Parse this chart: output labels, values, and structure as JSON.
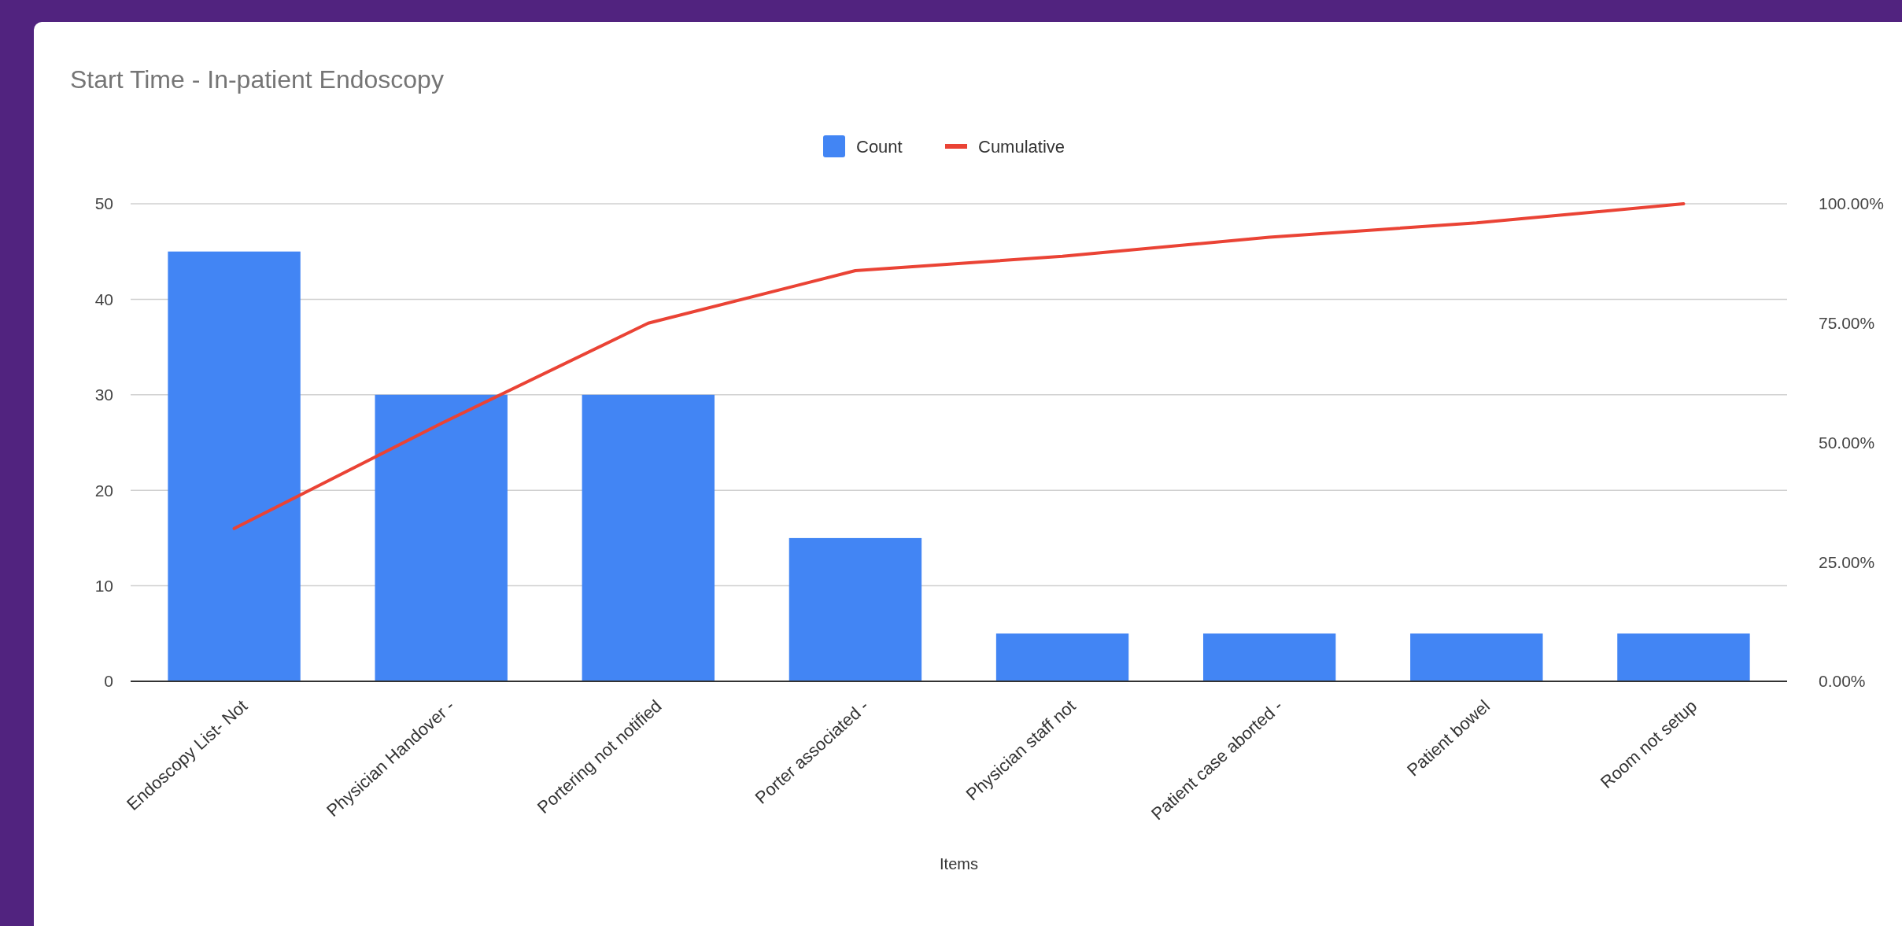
{
  "chart_data": {
    "type": "bar",
    "title": "Start Time - In-patient Endoscopy",
    "xlabel": "Items",
    "categories": [
      "Endoscopy List- Not",
      "Physician Handover -",
      "Portering not notified",
      "Porter associated -",
      "Physician staff not",
      "Patient case aborted -",
      "Patient bowel",
      "Room not setup"
    ],
    "series": [
      {
        "name": "Count",
        "color": "#4285f4",
        "values": [
          45,
          30,
          30,
          15,
          5,
          5,
          5,
          5
        ]
      },
      {
        "name": "Cumulative",
        "type": "line",
        "axis": "y2",
        "color": "#ea4335",
        "values": [
          32,
          54,
          75,
          86,
          89,
          93,
          96,
          100
        ]
      }
    ],
    "ylim": [
      0,
      50
    ],
    "yticks": [
      0,
      10,
      20,
      30,
      40,
      50
    ],
    "y2lim": [
      0,
      100
    ],
    "y2ticks": [
      {
        "value": 0,
        "label": "0.00%"
      },
      {
        "value": 25,
        "label": "25.00%"
      },
      {
        "value": 50,
        "label": "50.00%"
      },
      {
        "value": 75,
        "label": "75.00%"
      },
      {
        "value": 100,
        "label": "100.00%"
      }
    ],
    "grid": "y",
    "legend": "top",
    "marker": "none",
    "line_style": "solid"
  }
}
